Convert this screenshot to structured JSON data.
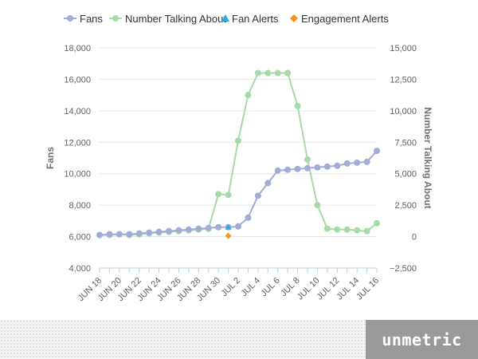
{
  "colors": {
    "fans": "#a3acd6",
    "talking": "#a6dba8",
    "fan_alert": "#29abe2",
    "engagement_alert": "#f7931e",
    "grid": "#e6e6e6",
    "axis_line": "#c0d0e0"
  },
  "legend": [
    {
      "label": "Fans",
      "symbol": "circle-line",
      "color_key": "fans"
    },
    {
      "label": "Number Talking About",
      "symbol": "circle-line",
      "color_key": "talking"
    },
    {
      "label": "Fan Alerts",
      "symbol": "triangle",
      "color_key": "fan_alert"
    },
    {
      "label": "Engagement Alerts",
      "symbol": "diamond",
      "color_key": "engagement_alert"
    }
  ],
  "brand": {
    "logo_text": "unmetric"
  },
  "chart_data": {
    "type": "line",
    "x": [
      "JUN 18",
      "JUN 19",
      "JUN 20",
      "JUN 21",
      "JUN 22",
      "JUN 23",
      "JUN 24",
      "JUN 25",
      "JUN 26",
      "JUN 27",
      "JUN 28",
      "JUN 29",
      "JUN 30",
      "JUL 1",
      "JUL 2",
      "JUL 3",
      "JUL 4",
      "JUL 5",
      "JUL 6",
      "JUL 7",
      "JUL 8",
      "JUL 9",
      "JUL 10",
      "JUL 11",
      "JUL 12",
      "JUL 13",
      "JUL 14",
      "JUL 15",
      "JUL 16"
    ],
    "x_tick_labels": [
      "JUN 18",
      "JUN 20",
      "JUN 22",
      "JUN 24",
      "JUN 26",
      "JUN 28",
      "JUN 30",
      "JUL 2",
      "JUL 4",
      "JUL 6",
      "JUL 8",
      "JUL 10",
      "JUL 12",
      "JUL 14",
      "JUL 16"
    ],
    "left_axis": {
      "label": "Fans",
      "ylim": [
        4000,
        18000
      ],
      "ticks": [
        4000,
        6000,
        8000,
        10000,
        12000,
        14000,
        16000,
        18000
      ],
      "tick_labels": [
        "4,000",
        "6,000",
        "8,000",
        "10,000",
        "12,000",
        "14,000",
        "16,000",
        "18,000"
      ]
    },
    "right_axis": {
      "label": "Number Talking About",
      "ylim": [
        -2500,
        15000
      ],
      "ticks": [
        -2500,
        0,
        2500,
        5000,
        7500,
        10000,
        12500,
        15000
      ],
      "tick_labels": [
        "−2,500",
        "0",
        "2,500",
        "5,000",
        "7,500",
        "10,000",
        "12,500",
        "15,000"
      ]
    },
    "grid": "horizontal",
    "legend_position": "top",
    "series": [
      {
        "name": "Fans",
        "axis": "left",
        "color_key": "fans",
        "values": [
          6100,
          6150,
          6150,
          6150,
          6200,
          6250,
          6300,
          6350,
          6400,
          6450,
          6500,
          6550,
          6600,
          6600,
          6650,
          7200,
          8600,
          9400,
          10200,
          10250,
          10300,
          10350,
          10400,
          10450,
          10500,
          10650,
          10700,
          10750,
          11450
        ]
      },
      {
        "name": "Number Talking About",
        "axis": "left",
        "color_key": "talking",
        "values": [
          6100,
          6100,
          6150,
          6100,
          6150,
          6200,
          6250,
          6300,
          6350,
          6400,
          6450,
          6500,
          8700,
          8650,
          12100,
          15000,
          16400,
          16400,
          16400,
          16400,
          14300,
          10900,
          8000,
          6500,
          6450,
          6450,
          6400,
          6350,
          6850
        ]
      },
      {
        "name": "Fan Alerts",
        "axis": "left",
        "type": "marker",
        "marker": "triangle",
        "color_key": "fan_alert",
        "points": [
          {
            "x": "JUL 1",
            "y": 6600
          }
        ]
      },
      {
        "name": "Engagement Alerts",
        "axis": "left",
        "type": "marker",
        "marker": "diamond",
        "color_key": "engagement_alert",
        "points": [
          {
            "x": "JUL 1",
            "y": 6050
          }
        ]
      }
    ]
  }
}
